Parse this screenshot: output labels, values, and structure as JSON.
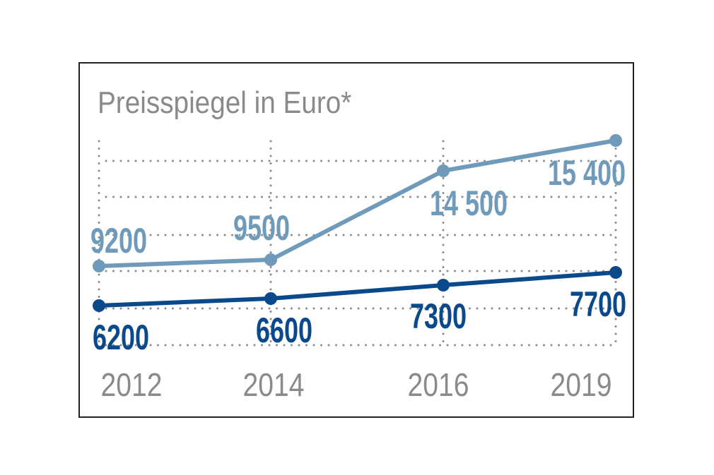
{
  "chart_data": {
    "type": "line",
    "title": "Preisspiegel in Euro*",
    "categories": [
      "2012",
      "2014",
      "2016",
      "2019"
    ],
    "series": [
      {
        "values": [
          9200,
          9500,
          14500,
          15400
        ],
        "labels": [
          "9200",
          "9500",
          "14 500",
          "15 400"
        ],
        "color": "#6f9aba"
      },
      {
        "values": [
          6200,
          6600,
          7300,
          7700
        ],
        "labels": [
          "6200",
          "6600",
          "7300",
          "7700"
        ],
        "color": "#0a4a8c"
      }
    ],
    "grid": true,
    "grid_color": "#8a8a8a",
    "xlabel": "",
    "ylabel": ""
  }
}
